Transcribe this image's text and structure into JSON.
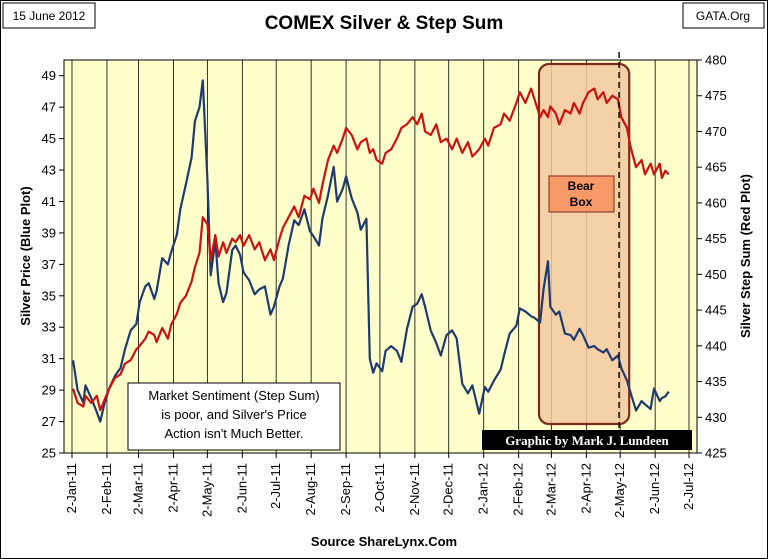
{
  "header": {
    "date_label": "15 June 2012",
    "source_label": "GATA.Org",
    "footer_source": "Source ShareLynx.Com"
  },
  "annotations": {
    "bear_box_line1": "Bear",
    "bear_box_line2": "Box",
    "sentiment_line1": "Market Sentiment (Step Sum)",
    "sentiment_line2": "is poor, and Silver's Price",
    "sentiment_line3": "Action isn't Much Better.",
    "credit": "Graphic by Mark J. Lundeen"
  },
  "colors": {
    "plot_bg": "#ffffcc",
    "silver_price": "#1f3a6e",
    "step_sum": "#cc1111",
    "bear_box_fill": "#f2c9a0",
    "bear_box_edge": "#7a2b1a",
    "bear_label_fill": "#f79969",
    "credit_bg": "#000000"
  },
  "chart_data": {
    "type": "line",
    "title": "COMEX Silver & Step Sum",
    "ylabel_left": "Silver Price (Blue Plot)",
    "ylabel_right": "Silver Step Sum (Red Plot)",
    "x_ticks": [
      "2-Jan-11",
      "2-Feb-11",
      "2-Mar-11",
      "2-Apr-11",
      "2-May-11",
      "2-Jun-11",
      "2-Jul-11",
      "2-Aug-11",
      "2-Sep-11",
      "2-Oct-11",
      "2-Nov-11",
      "2-Dec-11",
      "2-Jan-12",
      "2-Feb-12",
      "2-Mar-12",
      "2-Apr-12",
      "2-May-12",
      "2-Jun-12",
      "2-Jul-12"
    ],
    "y_left_ticks": [
      "25",
      "27",
      "29",
      "31",
      "33",
      "35",
      "37",
      "39",
      "41",
      "43",
      "45",
      "47",
      "49"
    ],
    "y_right_ticks": [
      "425",
      "430",
      "435",
      "440",
      "445",
      "450",
      "455",
      "460",
      "465",
      "470",
      "475",
      "480"
    ],
    "y_left_range": [
      25,
      50
    ],
    "y_right_range": [
      425,
      480
    ],
    "grid": "vertical",
    "bear_box_dates": [
      "2012-02-20",
      "2012-05-10"
    ],
    "dashed_marker_date": "2012-05-01",
    "series": [
      {
        "name": "Silver Price (Blue Plot)",
        "axis": "left",
        "points": [
          [
            "2011-01-03",
            30.9
          ],
          [
            "2011-01-07",
            29.0
          ],
          [
            "2011-01-12",
            28.2
          ],
          [
            "2011-01-14",
            29.3
          ],
          [
            "2011-01-19",
            28.5
          ],
          [
            "2011-01-24",
            27.6
          ],
          [
            "2011-01-27",
            27.0
          ],
          [
            "2011-01-31",
            28.2
          ],
          [
            "2011-02-04",
            29.1
          ],
          [
            "2011-02-09",
            29.9
          ],
          [
            "2011-02-14",
            30.4
          ],
          [
            "2011-02-18",
            31.6
          ],
          [
            "2011-02-23",
            32.8
          ],
          [
            "2011-02-28",
            33.2
          ],
          [
            "2011-03-03",
            34.6
          ],
          [
            "2011-03-08",
            35.6
          ],
          [
            "2011-03-11",
            35.8
          ],
          [
            "2011-03-16",
            34.8
          ],
          [
            "2011-03-18",
            35.3
          ],
          [
            "2011-03-23",
            37.4
          ],
          [
            "2011-03-28",
            37.0
          ],
          [
            "2011-03-31",
            37.8
          ],
          [
            "2011-04-05",
            38.9
          ],
          [
            "2011-04-08",
            40.5
          ],
          [
            "2011-04-13",
            42.1
          ],
          [
            "2011-04-18",
            43.8
          ],
          [
            "2011-04-21",
            46.1
          ],
          [
            "2011-04-25",
            47.0
          ],
          [
            "2011-04-28",
            48.7
          ],
          [
            "2011-05-02",
            42.4
          ],
          [
            "2011-05-05",
            36.3
          ],
          [
            "2011-05-09",
            38.5
          ],
          [
            "2011-05-12",
            35.8
          ],
          [
            "2011-05-16",
            34.6
          ],
          [
            "2011-05-19",
            35.2
          ],
          [
            "2011-05-24",
            37.9
          ],
          [
            "2011-05-27",
            38.2
          ],
          [
            "2011-05-31",
            37.6
          ],
          [
            "2011-06-03",
            36.5
          ],
          [
            "2011-06-08",
            36.0
          ],
          [
            "2011-06-13",
            35.1
          ],
          [
            "2011-06-17",
            35.4
          ],
          [
            "2011-06-22",
            35.6
          ],
          [
            "2011-06-27",
            33.8
          ],
          [
            "2011-06-30",
            34.3
          ],
          [
            "2011-07-05",
            35.6
          ],
          [
            "2011-07-08",
            36.1
          ],
          [
            "2011-07-13",
            38.2
          ],
          [
            "2011-07-18",
            39.8
          ],
          [
            "2011-07-22",
            39.5
          ],
          [
            "2011-07-27",
            40.5
          ],
          [
            "2011-08-01",
            39.1
          ],
          [
            "2011-08-04",
            38.8
          ],
          [
            "2011-08-09",
            38.2
          ],
          [
            "2011-08-12",
            39.9
          ],
          [
            "2011-08-17",
            41.4
          ],
          [
            "2011-08-22",
            43.2
          ],
          [
            "2011-08-25",
            41.0
          ],
          [
            "2011-08-30",
            41.8
          ],
          [
            "2011-09-02",
            42.6
          ],
          [
            "2011-09-07",
            41.2
          ],
          [
            "2011-09-12",
            40.3
          ],
          [
            "2011-09-15",
            39.2
          ],
          [
            "2011-09-20",
            39.9
          ],
          [
            "2011-09-23",
            31.0
          ],
          [
            "2011-09-26",
            30.1
          ],
          [
            "2011-09-29",
            30.7
          ],
          [
            "2011-10-04",
            30.2
          ],
          [
            "2011-10-07",
            31.5
          ],
          [
            "2011-10-12",
            31.8
          ],
          [
            "2011-10-17",
            31.5
          ],
          [
            "2011-10-21",
            30.8
          ],
          [
            "2011-10-26",
            32.9
          ],
          [
            "2011-10-31",
            34.3
          ],
          [
            "2011-11-04",
            34.5
          ],
          [
            "2011-11-08",
            35.1
          ],
          [
            "2011-11-11",
            34.3
          ],
          [
            "2011-11-16",
            32.8
          ],
          [
            "2011-11-21",
            32.0
          ],
          [
            "2011-11-25",
            31.2
          ],
          [
            "2011-11-30",
            32.5
          ],
          [
            "2011-12-05",
            32.8
          ],
          [
            "2011-12-09",
            32.3
          ],
          [
            "2011-12-14",
            29.4
          ],
          [
            "2011-12-19",
            28.8
          ],
          [
            "2011-12-23",
            29.3
          ],
          [
            "2011-12-29",
            27.5
          ],
          [
            "2012-01-03",
            29.2
          ],
          [
            "2012-01-06",
            28.9
          ],
          [
            "2012-01-11",
            29.6
          ],
          [
            "2012-01-17",
            30.3
          ],
          [
            "2012-01-20",
            31.2
          ],
          [
            "2012-01-25",
            32.6
          ],
          [
            "2012-01-31",
            33.1
          ],
          [
            "2012-02-03",
            34.2
          ],
          [
            "2012-02-08",
            34.0
          ],
          [
            "2012-02-13",
            33.7
          ],
          [
            "2012-02-16",
            33.6
          ],
          [
            "2012-02-21",
            33.3
          ],
          [
            "2012-02-24",
            35.4
          ],
          [
            "2012-02-28",
            37.2
          ],
          [
            "2012-03-01",
            34.3
          ],
          [
            "2012-03-06",
            33.8
          ],
          [
            "2012-03-09",
            34.0
          ],
          [
            "2012-03-14",
            32.6
          ],
          [
            "2012-03-19",
            32.5
          ],
          [
            "2012-03-22",
            32.2
          ],
          [
            "2012-03-27",
            32.9
          ],
          [
            "2012-03-30",
            32.5
          ],
          [
            "2012-04-04",
            31.7
          ],
          [
            "2012-04-09",
            31.8
          ],
          [
            "2012-04-12",
            31.6
          ],
          [
            "2012-04-17",
            31.4
          ],
          [
            "2012-04-20",
            31.6
          ],
          [
            "2012-04-25",
            30.9
          ],
          [
            "2012-04-30",
            31.2
          ],
          [
            "2012-05-03",
            30.4
          ],
          [
            "2012-05-08",
            29.6
          ],
          [
            "2012-05-11",
            28.9
          ],
          [
            "2012-05-16",
            27.7
          ],
          [
            "2012-05-21",
            28.3
          ],
          [
            "2012-05-24",
            28.1
          ],
          [
            "2012-05-29",
            27.8
          ],
          [
            "2012-06-01",
            29.1
          ],
          [
            "2012-06-06",
            28.3
          ],
          [
            "2012-06-08",
            28.5
          ],
          [
            "2012-06-11",
            28.6
          ],
          [
            "2012-06-14",
            28.9
          ]
        ]
      },
      {
        "name": "Silver Step Sum (Red Plot)",
        "axis": "right",
        "points": [
          [
            "2011-01-03",
            434.0
          ],
          [
            "2011-01-07",
            432.0
          ],
          [
            "2011-01-12",
            431.5
          ],
          [
            "2011-01-14",
            433.0
          ],
          [
            "2011-01-19",
            432.0
          ],
          [
            "2011-01-24",
            433.0
          ],
          [
            "2011-01-27",
            431.0
          ],
          [
            "2011-01-31",
            432.5
          ],
          [
            "2011-02-04",
            434.0
          ],
          [
            "2011-02-09",
            435.5
          ],
          [
            "2011-02-14",
            436.0
          ],
          [
            "2011-02-18",
            437.5
          ],
          [
            "2011-02-23",
            438.0
          ],
          [
            "2011-02-28",
            439.5
          ],
          [
            "2011-03-03",
            440.0
          ],
          [
            "2011-03-08",
            441.0
          ],
          [
            "2011-03-11",
            442.0
          ],
          [
            "2011-03-16",
            441.5
          ],
          [
            "2011-03-18",
            440.5
          ],
          [
            "2011-03-23",
            442.5
          ],
          [
            "2011-03-28",
            441.0
          ],
          [
            "2011-03-31",
            443.0
          ],
          [
            "2011-04-05",
            444.5
          ],
          [
            "2011-04-08",
            446.0
          ],
          [
            "2011-04-13",
            447.0
          ],
          [
            "2011-04-18",
            449.0
          ],
          [
            "2011-04-21",
            451.0
          ],
          [
            "2011-04-25",
            453.0
          ],
          [
            "2011-04-28",
            458.0
          ],
          [
            "2011-05-02",
            457.0
          ],
          [
            "2011-05-05",
            452.0
          ],
          [
            "2011-05-09",
            455.5
          ],
          [
            "2011-05-12",
            452.5
          ],
          [
            "2011-05-16",
            454.5
          ],
          [
            "2011-05-19",
            453.0
          ],
          [
            "2011-05-24",
            455.0
          ],
          [
            "2011-05-27",
            454.5
          ],
          [
            "2011-05-31",
            455.5
          ],
          [
            "2011-06-03",
            454.0
          ],
          [
            "2011-06-08",
            455.5
          ],
          [
            "2011-06-13",
            453.5
          ],
          [
            "2011-06-17",
            454.5
          ],
          [
            "2011-06-22",
            452.0
          ],
          [
            "2011-06-27",
            453.5
          ],
          [
            "2011-06-30",
            452.0
          ],
          [
            "2011-07-05",
            455.0
          ],
          [
            "2011-07-08",
            456.5
          ],
          [
            "2011-07-13",
            458.0
          ],
          [
            "2011-07-18",
            459.5
          ],
          [
            "2011-07-22",
            458.0
          ],
          [
            "2011-07-27",
            461.0
          ],
          [
            "2011-08-01",
            460.5
          ],
          [
            "2011-08-04",
            462.0
          ],
          [
            "2011-08-09",
            460.0
          ],
          [
            "2011-08-12",
            462.5
          ],
          [
            "2011-08-17",
            466.0
          ],
          [
            "2011-08-22",
            468.0
          ],
          [
            "2011-08-25",
            467.0
          ],
          [
            "2011-08-30",
            469.0
          ],
          [
            "2011-09-02",
            470.5
          ],
          [
            "2011-09-07",
            469.5
          ],
          [
            "2011-09-12",
            467.5
          ],
          [
            "2011-09-15",
            468.5
          ],
          [
            "2011-09-20",
            469.0
          ],
          [
            "2011-09-23",
            467.0
          ],
          [
            "2011-09-26",
            467.5
          ],
          [
            "2011-09-29",
            466.0
          ],
          [
            "2011-10-04",
            465.5
          ],
          [
            "2011-10-07",
            467.0
          ],
          [
            "2011-10-12",
            467.5
          ],
          [
            "2011-10-17",
            469.0
          ],
          [
            "2011-10-21",
            470.5
          ],
          [
            "2011-10-26",
            471.0
          ],
          [
            "2011-10-31",
            472.0
          ],
          [
            "2011-11-04",
            471.0
          ],
          [
            "2011-11-08",
            472.5
          ],
          [
            "2011-11-11",
            470.0
          ],
          [
            "2011-11-16",
            469.5
          ],
          [
            "2011-11-21",
            471.0
          ],
          [
            "2011-11-25",
            468.5
          ],
          [
            "2011-11-30",
            469.0
          ],
          [
            "2011-12-05",
            467.5
          ],
          [
            "2011-12-09",
            469.0
          ],
          [
            "2011-12-14",
            467.0
          ],
          [
            "2011-12-19",
            468.5
          ],
          [
            "2011-12-23",
            466.5
          ],
          [
            "2011-12-29",
            467.5
          ],
          [
            "2012-01-03",
            469.0
          ],
          [
            "2012-01-06",
            468.0
          ],
          [
            "2012-01-11",
            470.5
          ],
          [
            "2012-01-17",
            471.0
          ],
          [
            "2012-01-20",
            472.5
          ],
          [
            "2012-01-25",
            471.5
          ],
          [
            "2012-01-31",
            474.0
          ],
          [
            "2012-02-03",
            475.5
          ],
          [
            "2012-02-08",
            474.0
          ],
          [
            "2012-02-13",
            476.0
          ],
          [
            "2012-02-16",
            474.5
          ],
          [
            "2012-02-21",
            472.0
          ],
          [
            "2012-02-24",
            473.0
          ],
          [
            "2012-02-28",
            472.0
          ],
          [
            "2012-03-01",
            473.5
          ],
          [
            "2012-03-06",
            472.5
          ],
          [
            "2012-03-09",
            471.0
          ],
          [
            "2012-03-14",
            473.0
          ],
          [
            "2012-03-19",
            472.5
          ],
          [
            "2012-03-22",
            474.0
          ],
          [
            "2012-03-27",
            472.5
          ],
          [
            "2012-03-30",
            474.0
          ],
          [
            "2012-04-04",
            475.5
          ],
          [
            "2012-04-09",
            476.0
          ],
          [
            "2012-04-12",
            474.5
          ],
          [
            "2012-04-17",
            475.5
          ],
          [
            "2012-04-20",
            474.0
          ],
          [
            "2012-04-25",
            475.0
          ],
          [
            "2012-04-30",
            474.5
          ],
          [
            "2012-05-03",
            472.0
          ],
          [
            "2012-05-08",
            470.5
          ],
          [
            "2012-05-11",
            468.0
          ],
          [
            "2012-05-16",
            465.0
          ],
          [
            "2012-05-21",
            466.0
          ],
          [
            "2012-05-24",
            464.0
          ],
          [
            "2012-05-29",
            465.5
          ],
          [
            "2012-06-01",
            464.0
          ],
          [
            "2012-06-06",
            465.5
          ],
          [
            "2012-06-08",
            463.5
          ],
          [
            "2012-06-11",
            464.5
          ],
          [
            "2012-06-14",
            464.0
          ]
        ]
      }
    ]
  }
}
